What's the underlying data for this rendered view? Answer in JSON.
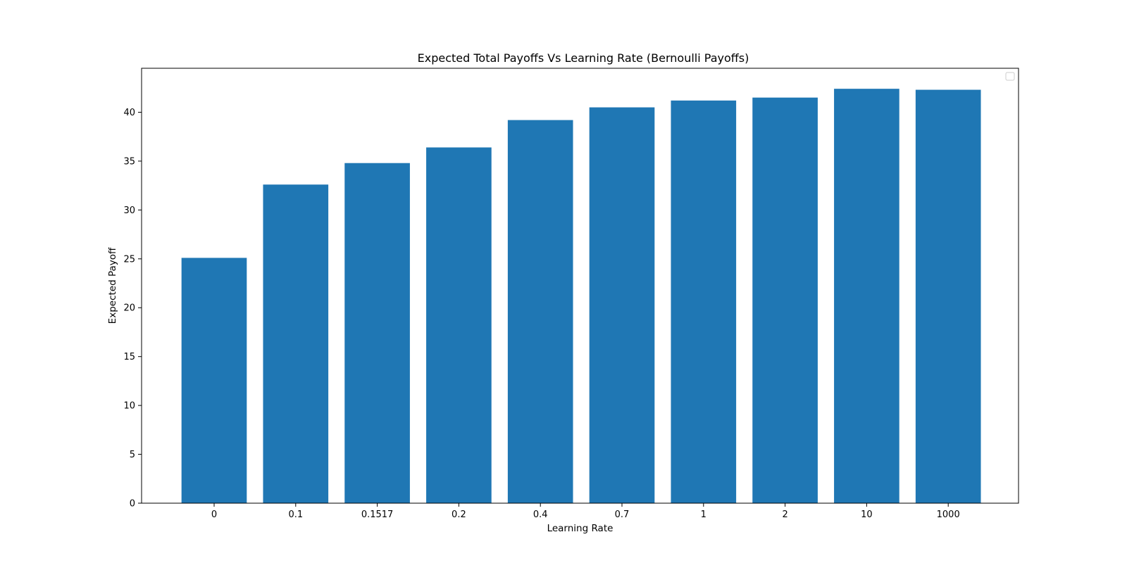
{
  "chart_data": {
    "type": "bar",
    "title": "Expected Total Payoffs Vs Learning Rate (Bernoulli Payoffs)",
    "xlabel": "Learning Rate",
    "ylabel": "Expected Payoff",
    "categories": [
      "0",
      "0.1",
      "0.1517",
      "0.2",
      "0.4",
      "0.7",
      "1",
      "2",
      "10",
      "1000"
    ],
    "values": [
      25.1,
      32.6,
      34.8,
      36.4,
      39.2,
      40.5,
      41.2,
      41.5,
      42.4,
      42.3
    ],
    "ylim": [
      0,
      44.5
    ],
    "yticks": [
      0,
      5,
      10,
      15,
      20,
      25,
      30,
      35,
      40
    ],
    "ytick_labels": [
      "0",
      "5",
      "10",
      "15",
      "20",
      "25",
      "30",
      "35",
      "40"
    ],
    "bar_color": "#1f77b4",
    "grid": false,
    "legend": {
      "placement": "top-right",
      "entries": []
    }
  }
}
